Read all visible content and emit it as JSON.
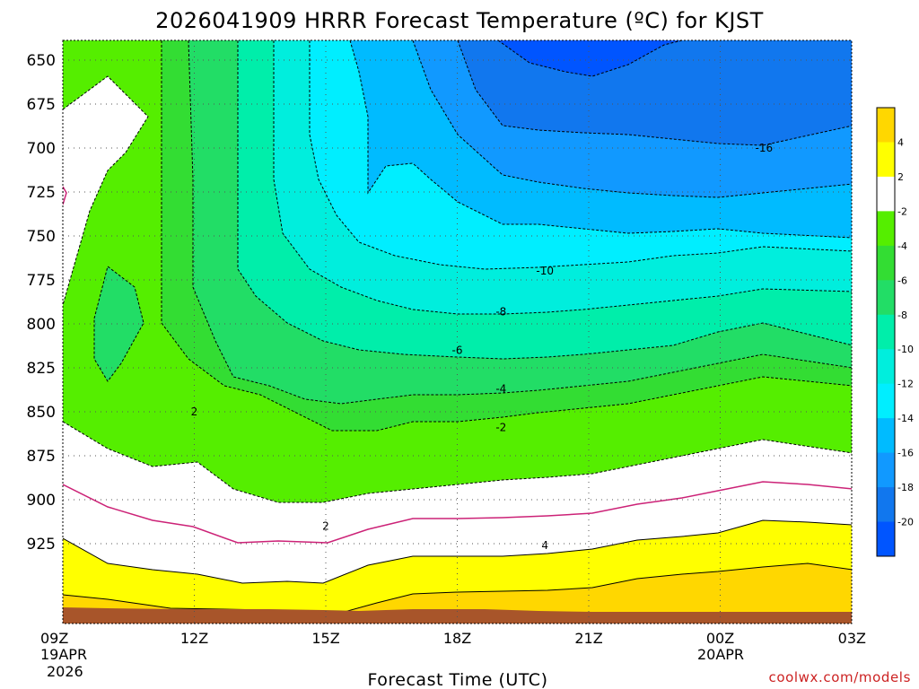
{
  "chart_data": {
    "type": "heatmap",
    "title": "2026041909 HRRR Forecast Temperature (ºC) for KJST",
    "xlabel": "Forecast Time (UTC)",
    "ylabel": "",
    "credit": "coolwx.com/models",
    "y_axis": {
      "scale": "pressure (hPa), increasing downward",
      "ticks": [
        "650",
        "675",
        "700",
        "725",
        "750",
        "775",
        "800",
        "825",
        "850",
        "875",
        "900",
        "925"
      ]
    },
    "x_axis": {
      "ticks": [
        {
          "label": "09Z",
          "sub": [
            "19APR",
            "2026"
          ]
        },
        {
          "label": "12Z",
          "sub": []
        },
        {
          "label": "15Z",
          "sub": []
        },
        {
          "label": "18Z",
          "sub": []
        },
        {
          "label": "21Z",
          "sub": []
        },
        {
          "label": "00Z",
          "sub": [
            "20APR"
          ]
        },
        {
          "label": "03Z",
          "sub": []
        }
      ]
    },
    "colorbar": {
      "ticks": [
        "4",
        "2",
        "-2",
        "-4",
        "-6",
        "-8",
        "-10",
        "-12",
        "-14",
        "-16",
        "-18",
        "-20"
      ],
      "bands": [
        {
          "range": "> 4",
          "color": "#ffd700"
        },
        {
          "range": "2 to 4",
          "color": "#ffff00"
        },
        {
          "range": "-2 to 2",
          "color": "#ffffff"
        },
        {
          "range": "-4 to -2",
          "color": "#55ee00"
        },
        {
          "range": "-6 to -4",
          "color": "#33dd33"
        },
        {
          "range": "-8 to -6",
          "color": "#22dd66"
        },
        {
          "range": "-10 to -8",
          "color": "#00eeaa"
        },
        {
          "range": "-12 to -10",
          "color": "#00eedd"
        },
        {
          "range": "-14 to -12",
          "color": "#00eeff"
        },
        {
          "range": "-16 to -14",
          "color": "#00bbff"
        },
        {
          "range": "-18 to -16",
          "color": "#1199ff"
        },
        {
          "range": "-20 to -18",
          "color": "#1177ee"
        },
        {
          "range": "< -20",
          "color": "#0055ff"
        }
      ]
    },
    "contour_labels": [
      {
        "text": "-16",
        "time": "01Z",
        "level": 700
      },
      {
        "text": "-10",
        "time": "20Z",
        "level": 770
      },
      {
        "text": "-8",
        "time": "19Z",
        "level": 793
      },
      {
        "text": "-6",
        "time": "18Z",
        "level": 815
      },
      {
        "text": "-4",
        "time": "19Z",
        "level": 837
      },
      {
        "text": "-2",
        "time": "19Z",
        "level": 859
      },
      {
        "text": "2",
        "time": "12Z",
        "level": 850
      },
      {
        "text": "2",
        "time": "15Z",
        "level": 915
      },
      {
        "text": "4",
        "time": "20Z",
        "level": 926
      }
    ],
    "terrain_color": "#a8552a",
    "zero_isotherm_color": "#cc2277",
    "grid": true
  }
}
